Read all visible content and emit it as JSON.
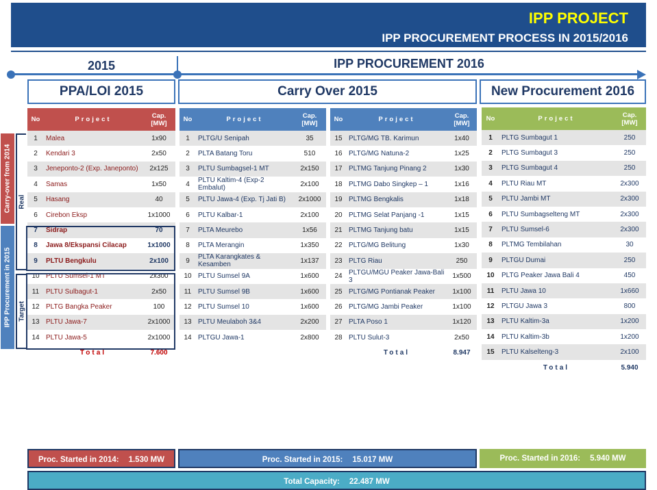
{
  "header": {
    "title": "IPP PROJECT",
    "subtitle": "IPP PROCUREMENT PROCESS IN 2015/2016"
  },
  "timeline": {
    "left": "2015",
    "right": "IPP PROCUREMENT 2016"
  },
  "sections": {
    "ppa": "PPA/LOI 2015",
    "carry": "Carry Over 2015",
    "new": "New Procurement 2016"
  },
  "columns": {
    "no": "No",
    "project": "Project",
    "cap1": "Cap.",
    "cap2": "[MW]"
  },
  "side": {
    "carry_over": "Carry-over from 2014",
    "ipp": "IPP Procurement in 2015",
    "real": "Real",
    "target": "Target"
  },
  "ppa_rows": [
    {
      "no": "1",
      "project": "Malea",
      "cap": "1x90"
    },
    {
      "no": "2",
      "project": "Kendari 3",
      "cap": "2x50"
    },
    {
      "no": "3",
      "project": "Jeneponto-2 (Exp. Janeponto)",
      "cap": "2x125"
    },
    {
      "no": "4",
      "project": "Samas",
      "cap": "1x50"
    },
    {
      "no": "5",
      "project": "Hasang",
      "cap": "40"
    },
    {
      "no": "6",
      "project": "Cirebon Eksp",
      "cap": "1x1000"
    },
    {
      "no": "7",
      "project": "Sidrap",
      "cap": "70"
    },
    {
      "no": "8",
      "project": "Jawa 8/Ekspansi Cilacap",
      "cap": "1x1000"
    },
    {
      "no": "9",
      "project": "PLTU Bengkulu",
      "cap": "2x100"
    },
    {
      "no": "10",
      "project": "PLTU Sumsel-1 MT",
      "cap": "2x300"
    },
    {
      "no": "11",
      "project": "PLTU Sulbagut-1",
      "cap": "2x50"
    },
    {
      "no": "12",
      "project": "PLTG Bangka Peaker",
      "cap": "100"
    },
    {
      "no": "13",
      "project": "PLTU Jawa-7",
      "cap": "2x1000"
    },
    {
      "no": "14",
      "project": "PLTU Jawa-5",
      "cap": "2x1000"
    }
  ],
  "ppa_total": {
    "label": "Total",
    "value": "7.600"
  },
  "carry_a": [
    {
      "no": "1",
      "project": "PLTG/U Senipah",
      "cap": "35"
    },
    {
      "no": "2",
      "project": "PLTA Batang Toru",
      "cap": "510"
    },
    {
      "no": "3",
      "project": "PLTU Sumbagsel-1 MT",
      "cap": "2x150"
    },
    {
      "no": "4",
      "project": "PLTU Kaltim-4 (Exp-2 Embalut)",
      "cap": "2x100"
    },
    {
      "no": "5",
      "project": "PLTU Jawa-4 (Exp. Tj Jati B)",
      "cap": "2x1000"
    },
    {
      "no": "6",
      "project": "PLTU Kalbar-1",
      "cap": "2x100"
    },
    {
      "no": "7",
      "project": "PLTA Meurebo",
      "cap": "1x56"
    },
    {
      "no": "8",
      "project": "PLTA Merangin",
      "cap": "1x350"
    },
    {
      "no": "9",
      "project": "PLTA Karangkates & Kesamben",
      "cap": "1x137"
    },
    {
      "no": "10",
      "project": "PLTU Sumsel 9A",
      "cap": "1x600"
    },
    {
      "no": "11",
      "project": "PLTU Sumsel 9B",
      "cap": "1x600"
    },
    {
      "no": "12",
      "project": "PLTU Sumsel 10",
      "cap": "1x600"
    },
    {
      "no": "13",
      "project": "PLTU Meulaboh 3&4",
      "cap": "2x200"
    },
    {
      "no": "14",
      "project": "PLTGU Jawa-1",
      "cap": "2x800"
    }
  ],
  "carry_b": [
    {
      "no": "15",
      "project": "PLTG/MG TB. Karimun",
      "cap": "1x40"
    },
    {
      "no": "16",
      "project": "PLTG/MG Natuna-2",
      "cap": "1x25"
    },
    {
      "no": "17",
      "project": "PLTMG Tanjung Pinang 2",
      "cap": "1x30"
    },
    {
      "no": "18",
      "project": "PLTMG Dabo Singkep – 1",
      "cap": "1x16"
    },
    {
      "no": "19",
      "project": "PLTMG Bengkalis",
      "cap": "1x18"
    },
    {
      "no": "20",
      "project": "PLTMG Selat Panjang -1",
      "cap": "1x15"
    },
    {
      "no": "21",
      "project": "PLTMG Tanjung batu",
      "cap": "1x15"
    },
    {
      "no": "22",
      "project": "PLTG/MG Belitung",
      "cap": "1x30"
    },
    {
      "no": "23",
      "project": "PLTG Riau",
      "cap": "250"
    },
    {
      "no": "24",
      "project": "PLTGU/MGU Peaker Jawa-Bali 3",
      "cap": "1x500"
    },
    {
      "no": "25",
      "project": "PLTG/MG Pontianak Peaker",
      "cap": "1x100"
    },
    {
      "no": "26",
      "project": "PLTG/MG Jambi Peaker",
      "cap": "1x100"
    },
    {
      "no": "27",
      "project": "PLTA Poso 1",
      "cap": "1x120"
    },
    {
      "no": "28",
      "project": "PLTU Sulut-3",
      "cap": "2x50"
    }
  ],
  "carry_total": {
    "label": "Total",
    "value": "8.947"
  },
  "new_rows": [
    {
      "no": "1",
      "project": "PLTG Sumbagut 1",
      "cap": "250"
    },
    {
      "no": "2",
      "project": "PLTG Sumbagut 3",
      "cap": "250"
    },
    {
      "no": "3",
      "project": "PLTG Sumbagut 4",
      "cap": "250"
    },
    {
      "no": "4",
      "project": "PLTU Riau MT",
      "cap": "2x300"
    },
    {
      "no": "5",
      "project": "PLTU Jambi MT",
      "cap": "2x300"
    },
    {
      "no": "6",
      "project": "PLTU Sumbagselteng MT",
      "cap": "2x300"
    },
    {
      "no": "7",
      "project": "PLTU Sumsel-6",
      "cap": "2x300"
    },
    {
      "no": "8",
      "project": "PLTMG Tembilahan",
      "cap": "30"
    },
    {
      "no": "9",
      "project": "PLTGU Dumai",
      "cap": "250"
    },
    {
      "no": "10",
      "project": "PLTG Peaker Jawa Bali 4",
      "cap": "450"
    },
    {
      "no": "11",
      "project": "PLTU Jawa 10",
      "cap": "1x660"
    },
    {
      "no": "12",
      "project": "PLTGU Jawa 3",
      "cap": "800"
    },
    {
      "no": "13",
      "project": "PLTU Kaltim-3a",
      "cap": "1x200"
    },
    {
      "no": "14",
      "project": "PLTU Kaltim-3b",
      "cap": "1x200"
    },
    {
      "no": "15",
      "project": "PLTU Kalselteng-3",
      "cap": "2x100"
    }
  ],
  "new_total": {
    "label": "Total",
    "value": "5.940"
  },
  "bars": {
    "s14_label": "Proc. Started in 2014:",
    "s14_value": "1.530 MW",
    "s15_label": "Proc. Started in 2015:",
    "s15_value": "15.017 MW",
    "s16_label": "Proc. Started in 2016:",
    "s16_value": "5.940 MW",
    "total_label": "Total Capacity:",
    "total_value": "22.487 MW"
  }
}
